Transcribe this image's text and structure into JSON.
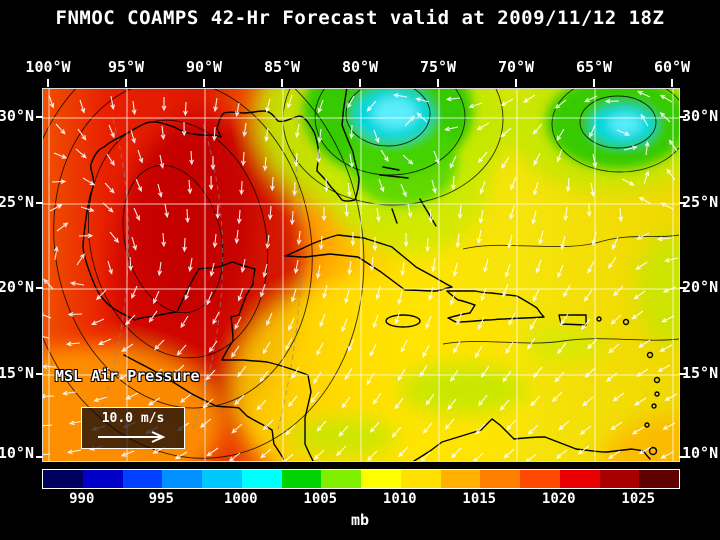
{
  "title": "FNMOC COAMPS 42-Hr Forecast valid at 2009/11/12 18Z",
  "map": {
    "lon_labels": [
      "100°W",
      "95°W",
      "90°W",
      "85°W",
      "80°W",
      "75°W",
      "70°W",
      "65°W",
      "60°W"
    ],
    "lat_labels": [
      "30°N",
      "25°N",
      "20°N",
      "15°N",
      "10°N"
    ],
    "field_label": "MSL Air Pressure",
    "wind_reference_label": "10.0 m/s"
  },
  "colorbar": {
    "unit": "mb",
    "tick_labels": [
      "990",
      "995",
      "1000",
      "1005",
      "1010",
      "1015",
      "1020",
      "1025"
    ],
    "segment_colors": [
      "#000060",
      "#0000c8",
      "#0040ff",
      "#0090ff",
      "#00c8ff",
      "#00ffff",
      "#00d400",
      "#80f000",
      "#ffff00",
      "#ffe000",
      "#ffb000",
      "#ff8000",
      "#ff4800",
      "#e80000",
      "#a80000",
      "#600000"
    ]
  },
  "chart_data": {
    "type": "heatmap",
    "title": "MSL Air Pressure",
    "unit": "mb",
    "header": "FNMOC COAMPS 42-Hr Forecast valid at 2009/11/12 18Z",
    "x_ticks": [
      "100°W",
      "95°W",
      "90°W",
      "85°W",
      "80°W",
      "75°W",
      "70°W",
      "65°W",
      "60°W"
    ],
    "y_ticks": [
      "30°N",
      "25°N",
      "20°N",
      "15°N",
      "10°N"
    ],
    "colorbar_values_mb": [
      990,
      995,
      1000,
      1005,
      1010,
      1015,
      1020,
      1025
    ],
    "wind_reference_ms": 10.0,
    "legend_position": "bottom"
  }
}
